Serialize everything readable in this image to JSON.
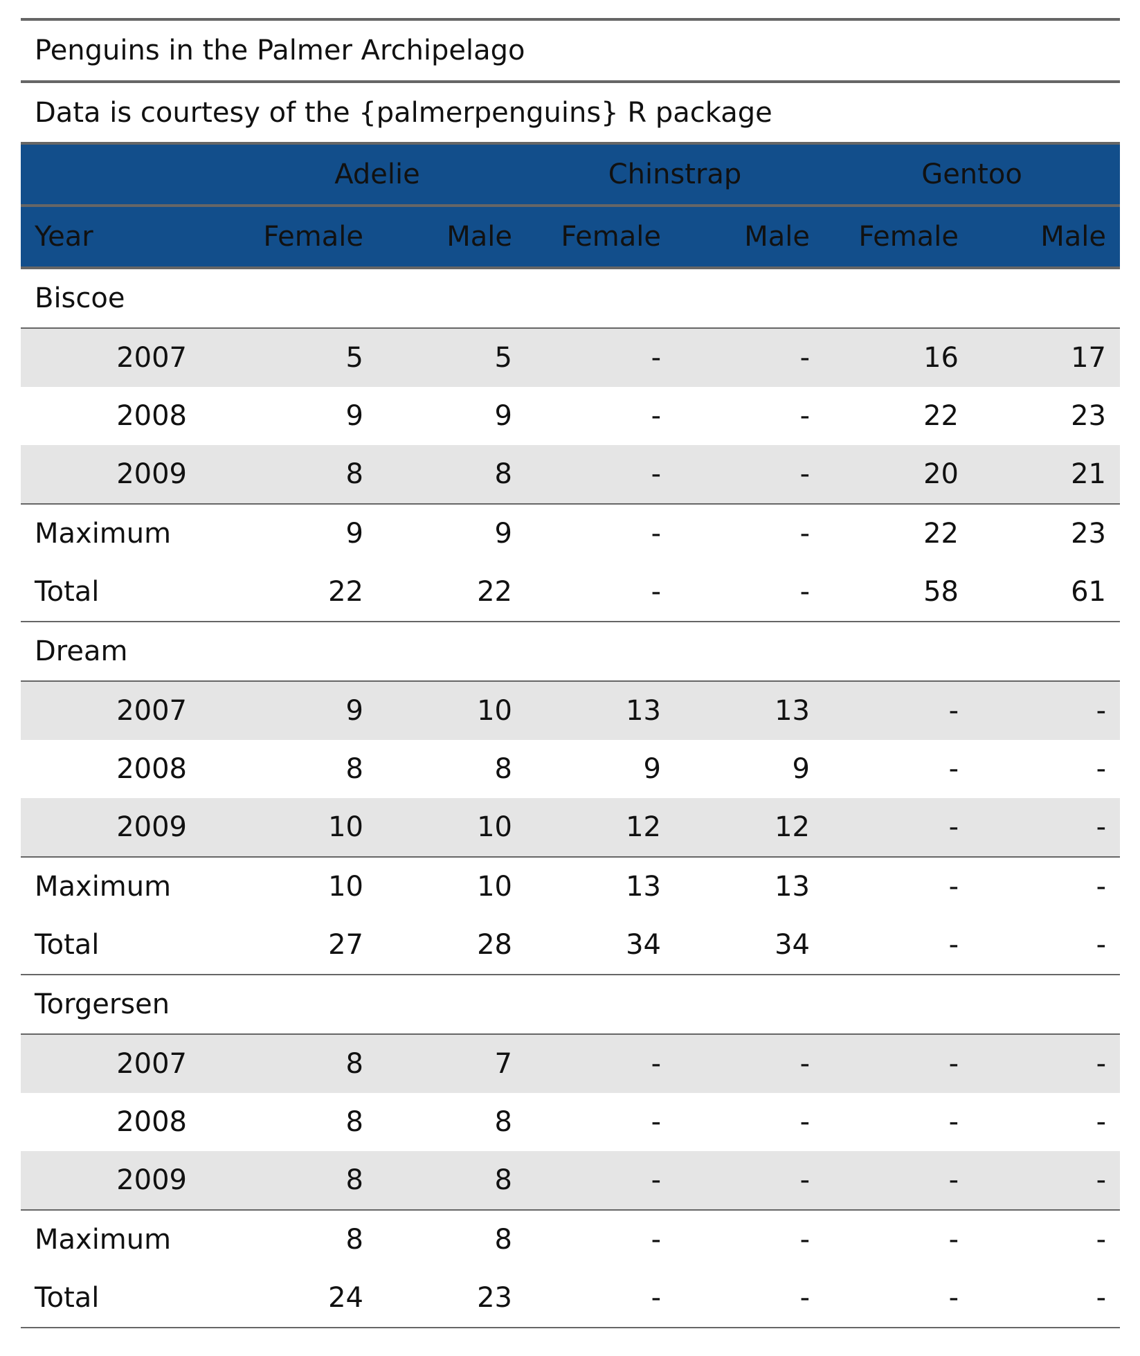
{
  "title": "Penguins in the Palmer Archipelago",
  "subtitle": "Data is courtesy of the {palmerpenguins} R package",
  "colors": {
    "header_bg": "#124e8b",
    "stripe": "#e5e5e5",
    "rule": "#666666"
  },
  "header": {
    "species": [
      "Adelie",
      "Chinstrap",
      "Gentoo"
    ],
    "year_label": "Year",
    "sex_labels": [
      "Female",
      "Male",
      "Female",
      "Male",
      "Female",
      "Male"
    ]
  },
  "groups": [
    {
      "name": "Biscoe",
      "rows": [
        {
          "year": "2007",
          "values": [
            "5",
            "5",
            "-",
            "-",
            "16",
            "17"
          ]
        },
        {
          "year": "2008",
          "values": [
            "9",
            "9",
            "-",
            "-",
            "22",
            "23"
          ]
        },
        {
          "year": "2009",
          "values": [
            "8",
            "8",
            "-",
            "-",
            "20",
            "21"
          ]
        }
      ],
      "summaries": [
        {
          "label": "Maximum",
          "values": [
            "9",
            "9",
            "-",
            "-",
            "22",
            "23"
          ]
        },
        {
          "label": "Total",
          "values": [
            "22",
            "22",
            "-",
            "-",
            "58",
            "61"
          ]
        }
      ]
    },
    {
      "name": "Dream",
      "rows": [
        {
          "year": "2007",
          "values": [
            "9",
            "10",
            "13",
            "13",
            "-",
            "-"
          ]
        },
        {
          "year": "2008",
          "values": [
            "8",
            "8",
            "9",
            "9",
            "-",
            "-"
          ]
        },
        {
          "year": "2009",
          "values": [
            "10",
            "10",
            "12",
            "12",
            "-",
            "-"
          ]
        }
      ],
      "summaries": [
        {
          "label": "Maximum",
          "values": [
            "10",
            "10",
            "13",
            "13",
            "-",
            "-"
          ]
        },
        {
          "label": "Total",
          "values": [
            "27",
            "28",
            "34",
            "34",
            "-",
            "-"
          ]
        }
      ]
    },
    {
      "name": "Torgersen",
      "rows": [
        {
          "year": "2007",
          "values": [
            "8",
            "7",
            "-",
            "-",
            "-",
            "-"
          ]
        },
        {
          "year": "2008",
          "values": [
            "8",
            "8",
            "-",
            "-",
            "-",
            "-"
          ]
        },
        {
          "year": "2009",
          "values": [
            "8",
            "8",
            "-",
            "-",
            "-",
            "-"
          ]
        }
      ],
      "summaries": [
        {
          "label": "Maximum",
          "values": [
            "8",
            "8",
            "-",
            "-",
            "-",
            "-"
          ]
        },
        {
          "label": "Total",
          "values": [
            "24",
            "23",
            "-",
            "-",
            "-",
            "-"
          ]
        }
      ]
    }
  ]
}
